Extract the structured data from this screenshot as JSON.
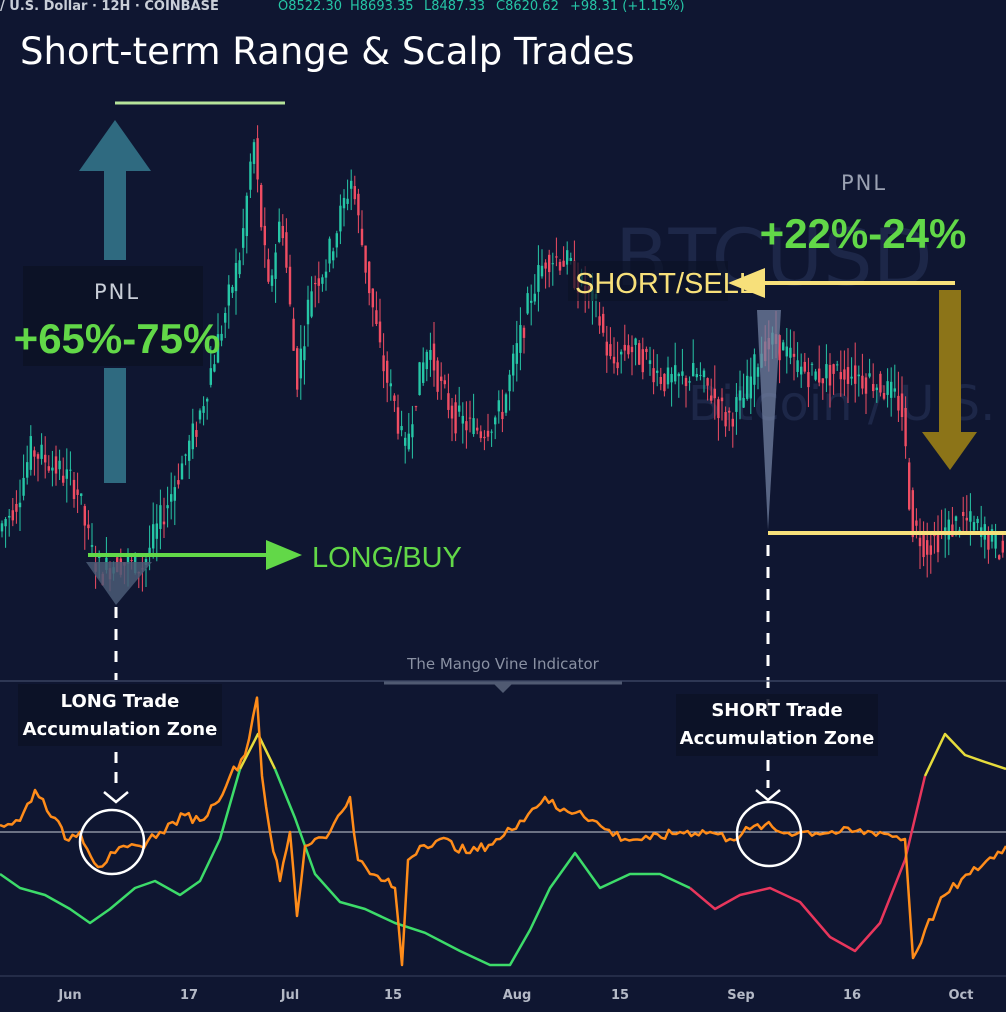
{
  "symbol_bar": {
    "symbol": "/ U.S. Dollar · 12H · COINBASE",
    "open": "O8522.30",
    "high": "H8693.35",
    "low": "L8487.33",
    "close": "C8620.62",
    "change": "+98.31 (+1.15%)"
  },
  "headline": "Short-term Range & Scalp Trades",
  "watermark": {
    "ticker": "BTCUSD",
    "name": "Bitcoin / U.S."
  },
  "long_trade": {
    "pnl_label": "PNL",
    "pnl_value": "+65%-75%",
    "signal": "LONG/BUY",
    "zone_line1": "LONG Trade",
    "zone_line2": "Accumulation Zone"
  },
  "short_trade": {
    "pnl_label": "PNL",
    "pnl_value": "+22%-24%",
    "signal": "SHORT/SELL",
    "zone_line1": "SHORT Trade",
    "zone_line2": "Accumulation Zone"
  },
  "indicator_name": "The Mango Vine Indicator",
  "colors": {
    "background": "#0f1631",
    "candle_up": "#26c6a6",
    "candle_down": "#ef4d63",
    "long_accent": "#62d848",
    "short_accent": "#f7e07a",
    "up_arrow": "#2f6a80",
    "down_arrow": "#8c7418",
    "osc_orange": "#ff8c1a",
    "osc_green": "#3ddc6a",
    "osc_red": "#e8365c",
    "osc_yellow": "#e6dc3c"
  },
  "chart_data": [
    {
      "type": "candlestick",
      "title": "",
      "x_ticks": [
        "Jun",
        "17",
        "Jul",
        "15",
        "Aug",
        "15",
        "Sep",
        "16",
        "Oct"
      ],
      "close_path": [
        {
          "x": 0,
          "y": 8150
        },
        {
          "x": 20,
          "y": 8600
        },
        {
          "x": 35,
          "y": 9300
        },
        {
          "x": 55,
          "y": 9100
        },
        {
          "x": 80,
          "y": 8800
        },
        {
          "x": 95,
          "y": 7900
        },
        {
          "x": 105,
          "y": 7650
        },
        {
          "x": 120,
          "y": 7800
        },
        {
          "x": 145,
          "y": 7700
        },
        {
          "x": 160,
          "y": 8200
        },
        {
          "x": 180,
          "y": 8900
        },
        {
          "x": 200,
          "y": 9600
        },
        {
          "x": 215,
          "y": 10400
        },
        {
          "x": 230,
          "y": 11200
        },
        {
          "x": 245,
          "y": 12000
        },
        {
          "x": 257,
          "y": 13500
        },
        {
          "x": 262,
          "y": 12700
        },
        {
          "x": 272,
          "y": 11400
        },
        {
          "x": 285,
          "y": 12500
        },
        {
          "x": 300,
          "y": 10200
        },
        {
          "x": 315,
          "y": 11500
        },
        {
          "x": 330,
          "y": 11800
        },
        {
          "x": 355,
          "y": 12950
        },
        {
          "x": 370,
          "y": 11700
        },
        {
          "x": 385,
          "y": 10500
        },
        {
          "x": 400,
          "y": 9800
        },
        {
          "x": 408,
          "y": 9200
        },
        {
          "x": 418,
          "y": 10000
        },
        {
          "x": 432,
          "y": 10700
        },
        {
          "x": 445,
          "y": 10100
        },
        {
          "x": 460,
          "y": 9700
        },
        {
          "x": 485,
          "y": 9550
        },
        {
          "x": 505,
          "y": 9800
        },
        {
          "x": 520,
          "y": 10600
        },
        {
          "x": 535,
          "y": 11400
        },
        {
          "x": 550,
          "y": 11900
        },
        {
          "x": 568,
          "y": 11850
        },
        {
          "x": 580,
          "y": 11600
        },
        {
          "x": 600,
          "y": 11200
        },
        {
          "x": 615,
          "y": 10400
        },
        {
          "x": 630,
          "y": 10700
        },
        {
          "x": 650,
          "y": 10500
        },
        {
          "x": 670,
          "y": 10200
        },
        {
          "x": 700,
          "y": 10300
        },
        {
          "x": 718,
          "y": 10000
        },
        {
          "x": 730,
          "y": 9700
        },
        {
          "x": 748,
          "y": 10000
        },
        {
          "x": 765,
          "y": 10650
        },
        {
          "x": 780,
          "y": 10750
        },
        {
          "x": 800,
          "y": 10400
        },
        {
          "x": 820,
          "y": 10300
        },
        {
          "x": 850,
          "y": 10350
        },
        {
          "x": 880,
          "y": 10200
        },
        {
          "x": 905,
          "y": 9900
        },
        {
          "x": 915,
          "y": 8300
        },
        {
          "x": 930,
          "y": 8000
        },
        {
          "x": 945,
          "y": 8150
        },
        {
          "x": 965,
          "y": 8350
        },
        {
          "x": 985,
          "y": 8200
        },
        {
          "x": 1006,
          "y": 7900
        }
      ],
      "ylim": [
        7000,
        14000
      ]
    },
    {
      "type": "line",
      "title": "The Mango Vine Indicator",
      "x_ticks": [
        "Jun",
        "17",
        "Jul",
        "15",
        "Aug",
        "15",
        "Sep",
        "16",
        "Oct"
      ],
      "ylim": [
        -100,
        100
      ],
      "series": [
        {
          "color": "orange",
          "values": [
            {
              "x": 0,
              "y": 5
            },
            {
              "x": 20,
              "y": 8
            },
            {
              "x": 35,
              "y": 30
            },
            {
              "x": 55,
              "y": 10
            },
            {
              "x": 65,
              "y": -5
            },
            {
              "x": 80,
              "y": 0
            },
            {
              "x": 98,
              "y": -25
            },
            {
              "x": 115,
              "y": -15
            },
            {
              "x": 140,
              "y": -10
            },
            {
              "x": 160,
              "y": 0
            },
            {
              "x": 185,
              "y": 12
            },
            {
              "x": 200,
              "y": 8
            },
            {
              "x": 215,
              "y": 20
            },
            {
              "x": 230,
              "y": 40
            },
            {
              "x": 245,
              "y": 55
            },
            {
              "x": 257,
              "y": 96
            },
            {
              "x": 262,
              "y": 40
            },
            {
              "x": 270,
              "y": 0
            },
            {
              "x": 280,
              "y": -35
            },
            {
              "x": 290,
              "y": 0
            },
            {
              "x": 297,
              "y": -60
            },
            {
              "x": 305,
              "y": -10
            },
            {
              "x": 315,
              "y": -5
            },
            {
              "x": 330,
              "y": 0
            },
            {
              "x": 350,
              "y": 25
            },
            {
              "x": 358,
              "y": -20
            },
            {
              "x": 370,
              "y": -30
            },
            {
              "x": 385,
              "y": -35
            },
            {
              "x": 395,
              "y": -40
            },
            {
              "x": 402,
              "y": -95
            },
            {
              "x": 408,
              "y": -20
            },
            {
              "x": 420,
              "y": -10
            },
            {
              "x": 440,
              "y": -5
            },
            {
              "x": 470,
              "y": -15
            },
            {
              "x": 500,
              "y": -5
            },
            {
              "x": 520,
              "y": 8
            },
            {
              "x": 545,
              "y": 25
            },
            {
              "x": 560,
              "y": 15
            },
            {
              "x": 580,
              "y": 15
            },
            {
              "x": 605,
              "y": 2
            },
            {
              "x": 625,
              "y": -5
            },
            {
              "x": 650,
              "y": -5
            },
            {
              "x": 680,
              "y": 0
            },
            {
              "x": 710,
              "y": 0
            },
            {
              "x": 730,
              "y": -5
            },
            {
              "x": 750,
              "y": 2
            },
            {
              "x": 765,
              "y": 5
            },
            {
              "x": 780,
              "y": 0
            },
            {
              "x": 800,
              "y": 0
            },
            {
              "x": 840,
              "y": 0
            },
            {
              "x": 880,
              "y": 0
            },
            {
              "x": 905,
              "y": -5
            },
            {
              "x": 913,
              "y": -90
            },
            {
              "x": 925,
              "y": -70
            },
            {
              "x": 945,
              "y": -45
            },
            {
              "x": 970,
              "y": -30
            },
            {
              "x": 1006,
              "y": -10
            }
          ]
        },
        {
          "color": "green-red-yellow",
          "values": [
            {
              "x": 0,
              "y": -30
            },
            {
              "x": 20,
              "y": -40
            },
            {
              "x": 45,
              "y": -45
            },
            {
              "x": 70,
              "y": -55
            },
            {
              "x": 90,
              "y": -65
            },
            {
              "x": 110,
              "y": -55
            },
            {
              "x": 135,
              "y": -40
            },
            {
              "x": 155,
              "y": -35
            },
            {
              "x": 180,
              "y": -45
            },
            {
              "x": 200,
              "y": -35
            },
            {
              "x": 220,
              "y": -5
            },
            {
              "x": 240,
              "y": 45
            },
            {
              "x": 258,
              "y": 70
            },
            {
              "x": 275,
              "y": 45
            },
            {
              "x": 295,
              "y": 10
            },
            {
              "x": 315,
              "y": -30
            },
            {
              "x": 340,
              "y": -50
            },
            {
              "x": 365,
              "y": -55
            },
            {
              "x": 395,
              "y": -65
            },
            {
              "x": 425,
              "y": -72
            },
            {
              "x": 460,
              "y": -85
            },
            {
              "x": 490,
              "y": -95
            },
            {
              "x": 510,
              "y": -95
            },
            {
              "x": 530,
              "y": -70
            },
            {
              "x": 550,
              "y": -40
            },
            {
              "x": 575,
              "y": -15
            },
            {
              "x": 600,
              "y": -40
            },
            {
              "x": 630,
              "y": -30
            },
            {
              "x": 660,
              "y": -30
            },
            {
              "x": 690,
              "y": -40
            },
            {
              "x": 715,
              "y": -55
            },
            {
              "x": 740,
              "y": -45
            },
            {
              "x": 770,
              "y": -40
            },
            {
              "x": 800,
              "y": -50
            },
            {
              "x": 830,
              "y": -75
            },
            {
              "x": 855,
              "y": -85
            },
            {
              "x": 880,
              "y": -65
            },
            {
              "x": 905,
              "y": -20
            },
            {
              "x": 925,
              "y": 40
            },
            {
              "x": 945,
              "y": 70
            },
            {
              "x": 965,
              "y": 55
            },
            {
              "x": 985,
              "y": 50
            },
            {
              "x": 1006,
              "y": 45
            }
          ]
        }
      ]
    }
  ]
}
